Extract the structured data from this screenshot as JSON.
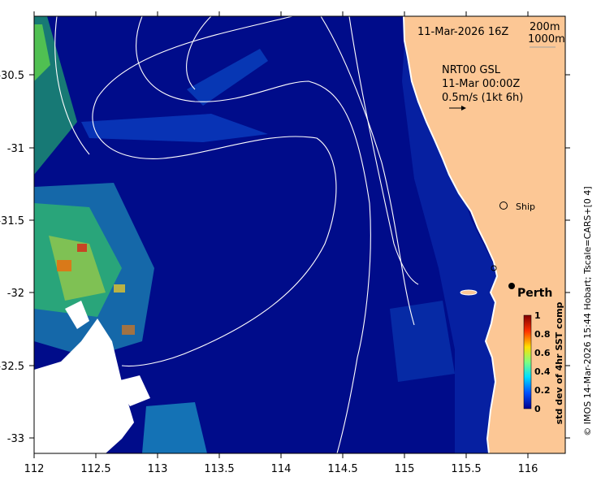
{
  "map": {
    "timestamp": "11-Mar-2026 16Z",
    "isobaths": [
      "200m",
      "1000m"
    ],
    "product": {
      "name": "NRT00 GSL",
      "time": "11-Mar 00:00Z",
      "scale": "0.5m/s (1kt 6h)"
    },
    "markers": {
      "ship": "Ship",
      "city": "Perth"
    },
    "x_ticks": [
      "112",
      "112.5",
      "113",
      "113.5",
      "114",
      "114.5",
      "115",
      "115.5",
      "116"
    ],
    "y_ticks": [
      "-30.5",
      "-31",
      "-31.5",
      "-32",
      "-32.5",
      "-33"
    ],
    "colorbar": {
      "title": "std dev of 4hr SST comp",
      "ticks": [
        "1",
        "0.8",
        "0.6",
        "0.4",
        "0.2",
        "0"
      ],
      "colors": [
        "#00008f",
        "#0050ff",
        "#00dfff",
        "#7fff7f",
        "#ffdf00",
        "#ff3000",
        "#800000"
      ]
    },
    "credit": "© IMOS 14-Mar-2026 15:44 Hobart; Tscale=CARS+[0 4]",
    "colors": {
      "ocean": "#000c8a",
      "land": "#fcc795",
      "contour": "#ffffff"
    }
  }
}
